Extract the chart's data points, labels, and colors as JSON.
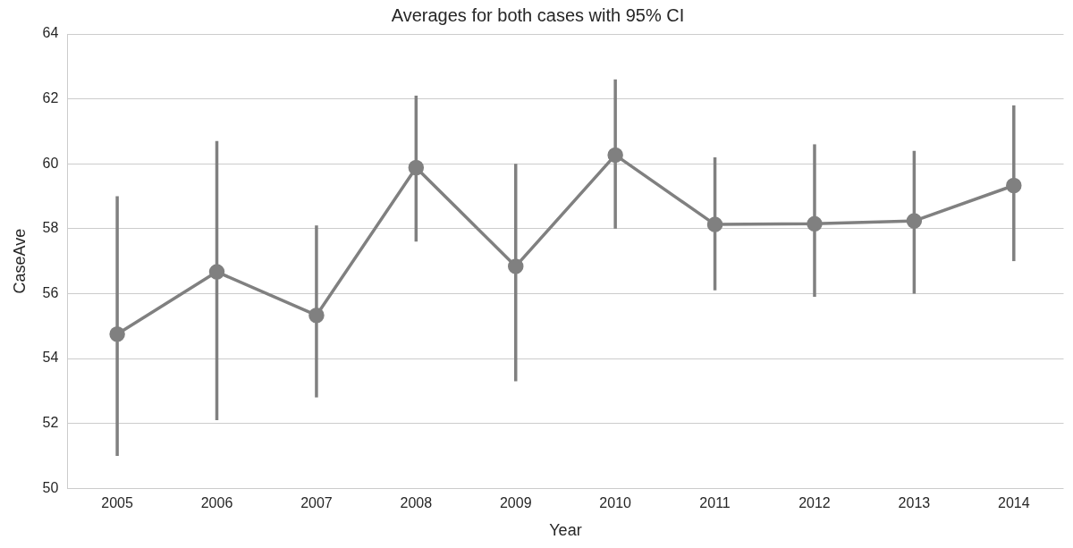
{
  "chart_data": {
    "type": "line",
    "title": "Averages for both cases with 95% CI",
    "xlabel": "Year",
    "ylabel": "CaseAve",
    "categories": [
      "2005",
      "2006",
      "2007",
      "2008",
      "2009",
      "2010",
      "2011",
      "2012",
      "2013",
      "2014"
    ],
    "series": [
      {
        "color": "#808080",
        "values": [
          54.75,
          56.67,
          55.33,
          59.88,
          56.84,
          60.27,
          58.13,
          58.15,
          58.24,
          59.33
        ],
        "errors": [
          [
            51.0,
            59.0
          ],
          [
            52.1,
            60.7
          ],
          [
            52.8,
            58.1
          ],
          [
            57.6,
            62.1
          ],
          [
            53.3,
            60.0
          ],
          [
            58.0,
            62.6
          ],
          [
            56.1,
            60.2
          ],
          [
            55.9,
            60.6
          ],
          [
            56.0,
            60.4
          ],
          [
            57.0,
            61.8
          ]
        ]
      }
    ],
    "ylim": [
      50,
      64
    ],
    "yticks": [
      50,
      52,
      54,
      56,
      58,
      60,
      62,
      64
    ],
    "grid": "y",
    "marker": "circle",
    "line_style": "solid",
    "legend": false
  }
}
